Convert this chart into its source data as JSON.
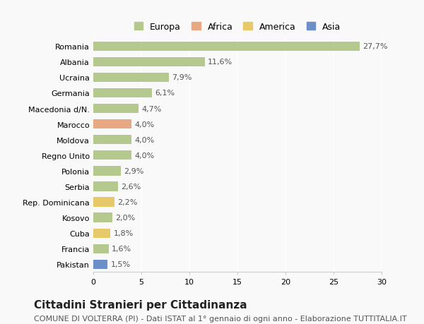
{
  "countries": [
    "Romania",
    "Albania",
    "Ucraina",
    "Germania",
    "Macedonia d/N.",
    "Marocco",
    "Moldova",
    "Regno Unito",
    "Polonia",
    "Serbia",
    "Rep. Dominicana",
    "Kosovo",
    "Cuba",
    "Francia",
    "Pakistan"
  ],
  "values": [
    27.7,
    11.6,
    7.9,
    6.1,
    4.7,
    4.0,
    4.0,
    4.0,
    2.9,
    2.6,
    2.2,
    2.0,
    1.8,
    1.6,
    1.5
  ],
  "labels": [
    "27,7%",
    "11,6%",
    "7,9%",
    "6,1%",
    "4,7%",
    "4,0%",
    "4,0%",
    "4,0%",
    "2,9%",
    "2,6%",
    "2,2%",
    "2,0%",
    "1,8%",
    "1,6%",
    "1,5%"
  ],
  "continents": [
    "Europa",
    "Europa",
    "Europa",
    "Europa",
    "Europa",
    "Africa",
    "Europa",
    "Europa",
    "Europa",
    "Europa",
    "America",
    "Europa",
    "America",
    "Europa",
    "Asia"
  ],
  "continent_colors": {
    "Europa": "#b5c98e",
    "Africa": "#e8a882",
    "America": "#e8c96a",
    "Asia": "#6b8fc9"
  },
  "legend_order": [
    "Europa",
    "Africa",
    "America",
    "Asia"
  ],
  "title": "Cittadini Stranieri per Cittadinanza",
  "subtitle": "COMUNE DI VOLTERRA (PI) - Dati ISTAT al 1° gennaio di ogni anno - Elaborazione TUTTITALIA.IT",
  "xlim": [
    0,
    30
  ],
  "xticks": [
    0,
    5,
    10,
    15,
    20,
    25,
    30
  ],
  "background_color": "#f9f9f9",
  "bar_height": 0.6,
  "title_fontsize": 11,
  "subtitle_fontsize": 8,
  "label_fontsize": 8,
  "tick_fontsize": 8,
  "legend_fontsize": 9
}
